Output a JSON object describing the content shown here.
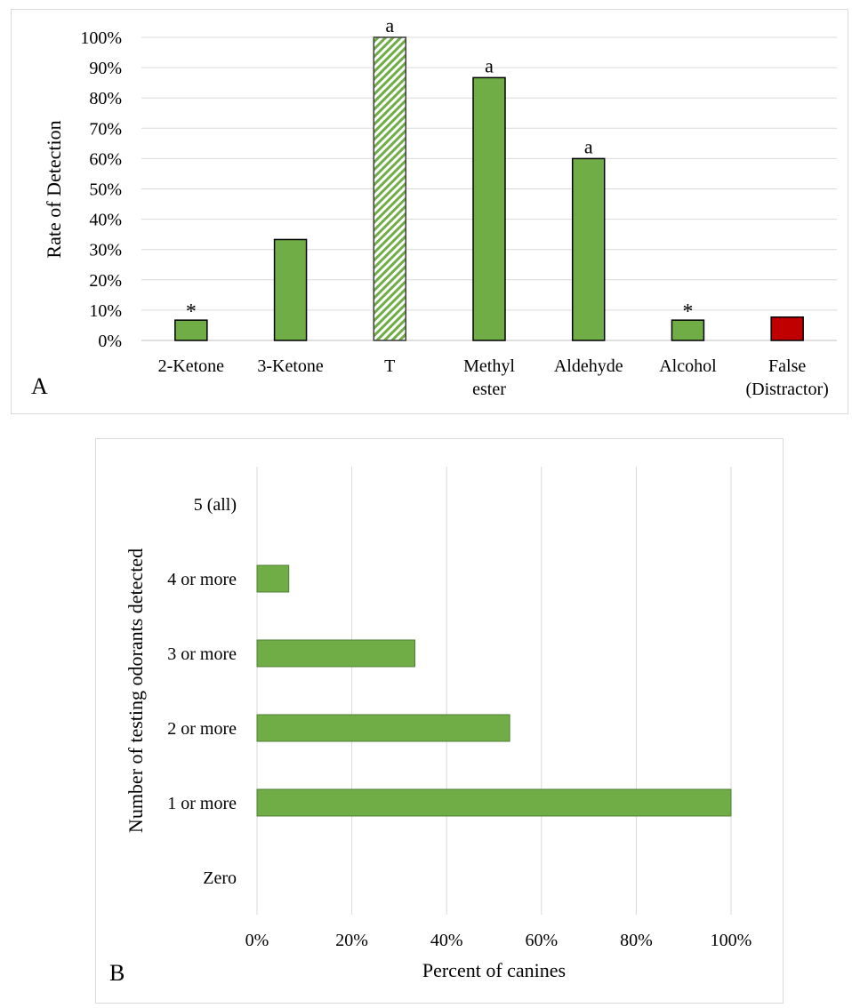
{
  "colors": {
    "bar_green": "#70ad47",
    "bar_green_edge_a": "#000000",
    "bar_green_edge_b": "#507e32",
    "bar_red": "#c00000",
    "hatch_green": "#70ad47",
    "grid": "#d9d9d9"
  },
  "chart_data": [
    {
      "panel": "A",
      "type": "bar",
      "orientation": "vertical",
      "panel_label": "A",
      "ylabel": "Rate of Detection",
      "xlabel": "",
      "ylim": [
        0,
        100
      ],
      "y_ticks": [
        "0%",
        "10%",
        "20%",
        "30%",
        "40%",
        "50%",
        "60%",
        "70%",
        "80%",
        "90%",
        "100%"
      ],
      "grid": true,
      "categories": [
        [
          "2-Ketone"
        ],
        [
          "3-Ketone"
        ],
        [
          "T"
        ],
        [
          "Methyl",
          "ester"
        ],
        [
          "Aldehyde"
        ],
        [
          "Alcohol"
        ],
        [
          "False",
          "(Distractor)"
        ]
      ],
      "values": [
        6.7,
        33.3,
        100,
        86.7,
        60,
        6.7,
        7.7
      ],
      "annotations": [
        "*",
        "",
        "a",
        "a",
        "a",
        "*",
        ""
      ],
      "bar_styles": [
        "solid",
        "solid",
        "hatched",
        "solid",
        "solid",
        "solid",
        "red"
      ]
    },
    {
      "panel": "B",
      "type": "bar",
      "orientation": "horizontal",
      "panel_label": "B",
      "xlabel": "Percent of canines",
      "ylabel": "Number of testing odorants detected",
      "xlim": [
        0,
        100
      ],
      "x_ticks": [
        "0%",
        "20%",
        "40%",
        "60%",
        "80%",
        "100%"
      ],
      "grid": true,
      "categories": [
        "5 (all)",
        "4 or more",
        "3 or more",
        "2 or more",
        "1 or more",
        "Zero"
      ],
      "values": [
        0,
        6.7,
        33.3,
        53.3,
        100,
        0
      ]
    }
  ]
}
